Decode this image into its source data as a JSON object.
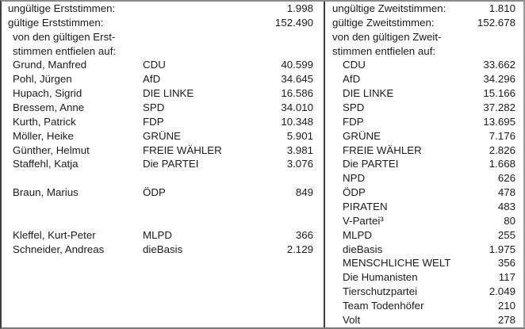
{
  "colors": {
    "background": "#ffffff",
    "text": "#1b1b1b",
    "outer_border": "#8a8a8a",
    "divider": "#3d3d3d"
  },
  "erststimmen": {
    "rows": [
      {
        "label": "ungültige Erststimmen:",
        "indent": 0,
        "party": "",
        "value": "1.998"
      },
      {
        "label": "gültige Erststimmen:",
        "indent": 0,
        "party": "",
        "value": "152.490"
      },
      {
        "label": "von den gültigen Erst-",
        "indent": 1,
        "party": "",
        "value": ""
      },
      {
        "label": "stimmen entfielen auf:",
        "indent": 1,
        "party": "",
        "value": ""
      },
      {
        "label": "Grund, Manfred",
        "indent": 1,
        "party": "CDU",
        "value": "40.599"
      },
      {
        "label": "Pohl, Jürgen",
        "indent": 1,
        "party": "AfD",
        "value": "34.645"
      },
      {
        "label": "Hupach, Sigrid",
        "indent": 1,
        "party": "DIE LINKE",
        "value": "16.586"
      },
      {
        "label": "Bressem, Anne",
        "indent": 1,
        "party": "SPD",
        "value": "34.010"
      },
      {
        "label": "Kurth, Patrick",
        "indent": 1,
        "party": "FDP",
        "value": "10.348"
      },
      {
        "label": "Möller, Heike",
        "indent": 1,
        "party": "GRÜNE",
        "value": "5.901"
      },
      {
        "label": "Günther, Helmut",
        "indent": 1,
        "party": "FREIE WÄHLER",
        "value": "3.981"
      },
      {
        "label": "Staffehl, Katja",
        "indent": 1,
        "party": "Die PARTEI",
        "value": "3.076"
      },
      {
        "label": "",
        "indent": 1,
        "party": "",
        "value": ""
      },
      {
        "label": "Braun, Marius",
        "indent": 1,
        "party": "ÖDP",
        "value": "849"
      },
      {
        "label": "",
        "indent": 1,
        "party": "",
        "value": ""
      },
      {
        "label": "",
        "indent": 1,
        "party": "",
        "value": ""
      },
      {
        "label": "Kleffel, Kurt-Peter",
        "indent": 1,
        "party": "MLPD",
        "value": "366"
      },
      {
        "label": "Schneider, Andreas",
        "indent": 1,
        "party": "dieBasis",
        "value": "2.129"
      },
      {
        "label": "",
        "indent": 1,
        "party": "",
        "value": ""
      },
      {
        "label": "",
        "indent": 1,
        "party": "",
        "value": ""
      },
      {
        "label": "",
        "indent": 1,
        "party": "",
        "value": ""
      },
      {
        "label": "",
        "indent": 1,
        "party": "",
        "value": ""
      },
      {
        "label": "",
        "indent": 1,
        "party": "",
        "value": ""
      }
    ]
  },
  "zweitstimmen": {
    "rows": [
      {
        "label": "ungültige Zweitstimmen:",
        "indent": 0,
        "party": "",
        "value": "1.810"
      },
      {
        "label": "gültige Zweitstimmen:",
        "indent": 0,
        "party": "",
        "value": "152.678"
      },
      {
        "label": "von den gültigen Zweit-",
        "indent": 0,
        "party": "",
        "value": ""
      },
      {
        "label": "stimmen entfielen auf:",
        "indent": 0,
        "party": "",
        "value": ""
      },
      {
        "label": "CDU",
        "indent": 1,
        "party": "",
        "value": "33.662"
      },
      {
        "label": "AfD",
        "indent": 1,
        "party": "",
        "value": "34.296"
      },
      {
        "label": "DIE LINKE",
        "indent": 1,
        "party": "",
        "value": "15.166"
      },
      {
        "label": "SPD",
        "indent": 1,
        "party": "",
        "value": "37.282"
      },
      {
        "label": "FDP",
        "indent": 1,
        "party": "",
        "value": "13.695"
      },
      {
        "label": "GRÜNE",
        "indent": 1,
        "party": "",
        "value": "7.176"
      },
      {
        "label": "FREIE WÄHLER",
        "indent": 1,
        "party": "",
        "value": "2.826"
      },
      {
        "label": "Die PARTEI",
        "indent": 1,
        "party": "",
        "value": "1.668"
      },
      {
        "label": "NPD",
        "indent": 1,
        "party": "",
        "value": "626"
      },
      {
        "label": "ÖDP",
        "indent": 1,
        "party": "",
        "value": "478"
      },
      {
        "label": "PIRATEN",
        "indent": 1,
        "party": "",
        "value": "483"
      },
      {
        "label": "V-Partei³",
        "indent": 1,
        "party": "",
        "value": "80"
      },
      {
        "label": "MLPD",
        "indent": 1,
        "party": "",
        "value": "255"
      },
      {
        "label": "dieBasis",
        "indent": 1,
        "party": "",
        "value": "1.975"
      },
      {
        "label": "MENSCHLICHE WELT",
        "indent": 1,
        "party": "",
        "value": "356"
      },
      {
        "label": "Die Humanisten",
        "indent": 1,
        "party": "",
        "value": "117"
      },
      {
        "label": "Tierschutzpartei",
        "indent": 1,
        "party": "",
        "value": "2.049"
      },
      {
        "label": "Team Todenhöfer",
        "indent": 1,
        "party": "",
        "value": "210"
      },
      {
        "label": "Volt",
        "indent": 1,
        "party": "",
        "value": "278"
      }
    ]
  }
}
